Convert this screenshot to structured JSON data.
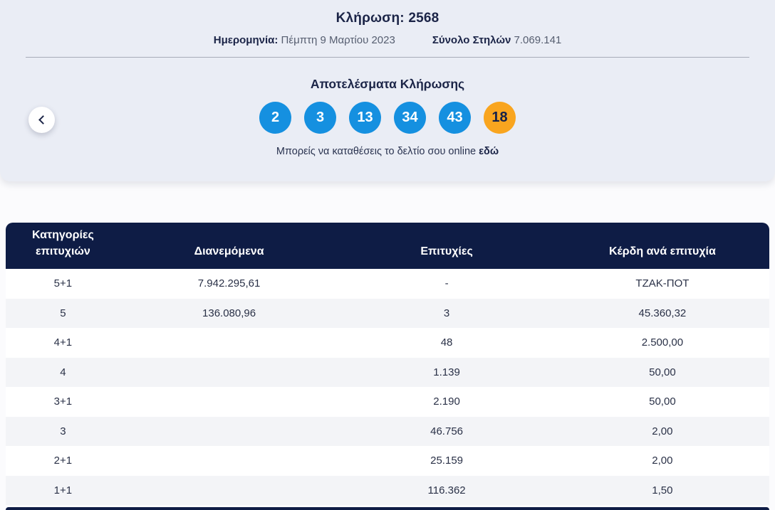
{
  "hero": {
    "title": "Κλήρωση: 2568",
    "date_label": "Ημερομηνία:",
    "date_value": "Πέμπτη 9 Μαρτίου 2023",
    "columns_label": "Σύνολο Στηλών",
    "columns_value": "7.069.141",
    "results_title": "Αποτελέσματα Κλήρωσης",
    "numbers": [
      {
        "value": "2",
        "type": "main"
      },
      {
        "value": "3",
        "type": "main"
      },
      {
        "value": "13",
        "type": "main"
      },
      {
        "value": "34",
        "type": "main"
      },
      {
        "value": "43",
        "type": "main"
      },
      {
        "value": "18",
        "type": "bonus"
      }
    ],
    "cta_text": "Μπορείς να καταθέσεις το δελτίο σου online",
    "cta_link_text": "εδώ"
  },
  "colors": {
    "main_ball": "#1590e0",
    "bonus_ball": "#f9a51f",
    "table_header": "#0e1c45",
    "hero_background": "#eaedf5",
    "row_alt": "#f3f4f7"
  },
  "table": {
    "headers": {
      "categories": "Κατηγορίες επιτυχιών",
      "distributed": "Διανεμόμενα",
      "winners": "Επιτυχίες",
      "payout": "Κέρδη ανά επιτυχία"
    },
    "rows": [
      {
        "category": "5+1",
        "distributed": "7.942.295,61",
        "winners": "-",
        "payout": "ΤΖΑΚ-ΠΟΤ"
      },
      {
        "category": "5",
        "distributed": "136.080,96",
        "winners": "3",
        "payout": "45.360,32"
      },
      {
        "category": "4+1",
        "distributed": "",
        "winners": "48",
        "payout": "2.500,00"
      },
      {
        "category": "4",
        "distributed": "",
        "winners": "1.139",
        "payout": "50,00"
      },
      {
        "category": "3+1",
        "distributed": "",
        "winners": "2.190",
        "payout": "50,00"
      },
      {
        "category": "3",
        "distributed": "",
        "winners": "46.756",
        "payout": "2,00"
      },
      {
        "category": "2+1",
        "distributed": "",
        "winners": "25.159",
        "payout": "2,00"
      },
      {
        "category": "1+1",
        "distributed": "",
        "winners": "116.362",
        "payout": "1,50"
      }
    ]
  }
}
